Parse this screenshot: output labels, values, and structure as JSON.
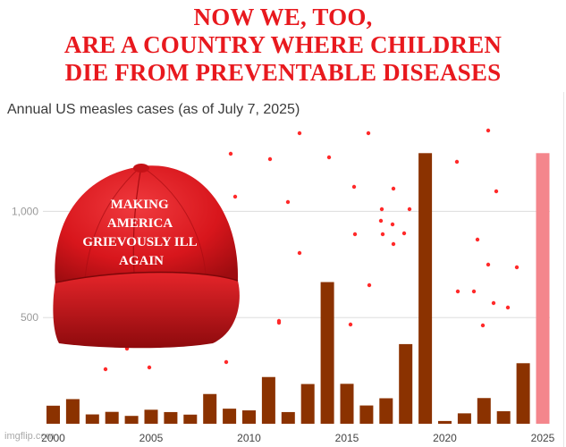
{
  "caption": {
    "lines": [
      "NOW WE, TOO,",
      "ARE A COUNTRY WHERE CHILDREN",
      "DIE FROM PREVENTABLE DISEASES"
    ]
  },
  "hat": {
    "text_lines": [
      "MAKING",
      "AMERICA",
      "GRIEVOUSLY ILL",
      "AGAIN"
    ],
    "color": "#d8161c"
  },
  "watermark": "imgflip.com",
  "chart_data": {
    "type": "bar",
    "title": "Annual US measles cases (as of July 7, 2025)",
    "xlabel": "",
    "ylabel": "",
    "categories": [
      "2000",
      "2001",
      "2002",
      "2003",
      "2004",
      "2005",
      "2006",
      "2007",
      "2008",
      "2009",
      "2010",
      "2011",
      "2012",
      "2013",
      "2014",
      "2015",
      "2016",
      "2017",
      "2018",
      "2019",
      "2020",
      "2021",
      "2022",
      "2023",
      "2024",
      "2025"
    ],
    "values": [
      85,
      116,
      44,
      56,
      37,
      66,
      55,
      43,
      140,
      71,
      63,
      220,
      55,
      187,
      667,
      188,
      86,
      120,
      375,
      1274,
      13,
      49,
      121,
      59,
      285,
      1274
    ],
    "highlight_index": 25,
    "bar_color": "#8b3200",
    "highlight_color": "#f4868c",
    "gridline_color": "#dddddd",
    "ylim": [
      0,
      1300
    ],
    "yticks": [
      500,
      1000
    ],
    "ytick_labels": [
      "500",
      "1,000"
    ],
    "xticks": [
      "2000",
      "2005",
      "2010",
      "2015",
      "2020",
      "2025"
    ],
    "grid": true,
    "legend": "none"
  }
}
